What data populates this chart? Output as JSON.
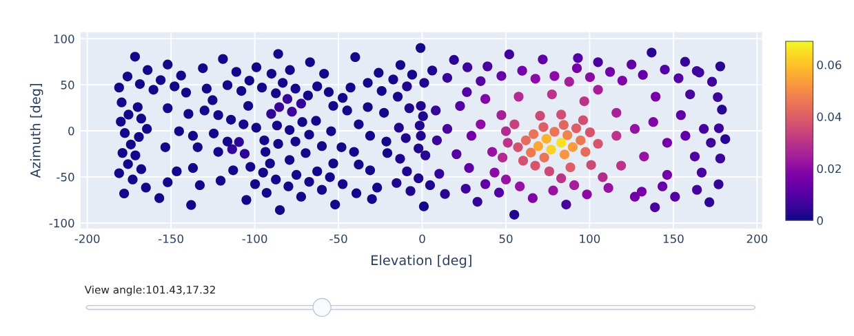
{
  "chart_data": {
    "type": "scatter",
    "xlabel": "Elevation [deg]",
    "ylabel": "Azimuth [deg]",
    "annotations": [
      "View angle:101.43,17.32"
    ],
    "xlim": [
      -204,
      203
    ],
    "ylim": [
      -106,
      107
    ],
    "xticks": [
      -200,
      -150,
      -100,
      -50,
      0,
      50,
      100,
      150,
      200
    ],
    "yticks": [
      -100,
      -50,
      0,
      50,
      100
    ],
    "clim": [
      0,
      0.069
    ],
    "cticks": [
      0,
      0.02,
      0.04,
      0.06
    ],
    "grid": true,
    "marker": "circle",
    "x": [
      -181,
      -180,
      -179,
      -181,
      -178,
      -176,
      -171.5,
      -164,
      -152,
      -157,
      -144,
      -138,
      -131,
      -119,
      -111,
      -99,
      -90,
      -86,
      -79,
      -67,
      -85,
      -52,
      -40,
      -26,
      -13,
      -6,
      -1,
      1,
      -30,
      -105,
      6,
      19,
      27,
      39,
      52,
      55,
      72,
      79,
      93,
      105,
      125,
      137,
      157,
      164,
      178,
      179,
      181,
      178,
      177,
      171.5,
      139,
      127,
      86,
      66,
      33,
      13.6,
      83,
      77,
      74.2,
      69.3,
      89.9,
      85,
      86.7,
      79,
      66.5,
      64.9,
      72.9,
      94.6,
      97.5,
      61.9,
      57.2,
      60.3,
      67.5,
      75.9,
      83,
      88.5,
      100.9,
      72.4,
      70.4,
      84.5,
      92,
      100.2,
      105,
      96.1,
      83,
      55.1,
      51.1,
      50,
      48,
      50,
      58.3,
      78.2,
      90.8,
      98.4,
      111.2,
      131.1,
      143.5,
      151,
      164.1,
      177.2,
      176.5,
      173.1,
      165.5,
      153.1,
      144.9,
      131.8,
      119.5,
      112.2,
      100.2,
      92.4,
      87.8,
      67.6,
      59.7,
      47.3,
      34.9,
      15,
      22.6,
      15,
      20.5,
      10.2,
      4.7,
      26,
      37.7,
      45.9,
      34.9,
      41.8,
      37.7,
      57.6,
      77.5,
      96.8,
      116,
      127,
      132.5,
      118.8,
      146.3,
      154.5,
      162.8,
      168.2,
      139.4,
      160,
      166.9,
      146.3,
      107.8,
      105,
      0.5,
      -0.8,
      1.9,
      8.1,
      8.8,
      29.4,
      28,
      26.7,
      47.3,
      43.2,
      116,
      138,
      157.2,
      172.4,
      -85.4,
      -77.8,
      -72.3,
      -80.5,
      -90.2,
      -109.4,
      -113.5,
      -106,
      -179.5,
      -175.4,
      -177.6,
      -174,
      -175.7,
      -172.9,
      -168.6,
      -169.9,
      -167.8,
      -169.2,
      -171.3,
      -167.8,
      -165,
      -160.5,
      -164.4,
      -156.2,
      -152,
      -153.4,
      -152,
      -147.9,
      -145.2,
      -146.6,
      -141,
      -139.6,
      -136.9,
      -134.1,
      -136.9,
      -132.8,
      -128.7,
      -130,
      -125.2,
      -121.8,
      -124.5,
      -121.8,
      -120.4,
      -116.3,
      -114.2,
      -116.3,
      -112.9,
      -108,
      -103.9,
      -106.7,
      -102.6,
      -99.8,
      -103.2,
      -99.1,
      -95.7,
      -94.3,
      -93.6,
      -95,
      -87.4,
      -87.4,
      -92.9,
      -86.7,
      -86,
      -90.9,
      -83.3,
      -79.2,
      -79.2,
      -79.9,
      -75.7,
      -75.7,
      -75.1,
      -72.3,
      -68.2,
      -71.6,
      -67.5,
      -69.6,
      -67.5,
      -62.7,
      -63.4,
      -59.9,
      -62.7,
      -59.9,
      -58.6,
      -55.8,
      -53.1,
      -54.4,
      -53.1,
      -55.1,
      -47.5,
      -44.8,
      -48.2,
      -47.5,
      -42.8,
      -39.3,
      -37.9,
      -40.7,
      -37.9,
      -32.5,
      -32.5,
      -31.1,
      -31.1,
      -26.9,
      -24.2,
      -22.8,
      -21.4,
      -20.8,
      -17.3,
      -14.6,
      -13.9,
      -13.2,
      -15.3,
      -9.1,
      -7.7,
      -9.8,
      -9.1,
      -7,
      -1.5,
      -2.2,
      -2.2,
      1.2,
      -0.8
    ],
    "values": [
      47,
      10,
      -24,
      -46,
      -68,
      59,
      80.5,
      66,
      72,
      -73,
      60,
      -80.5,
      68,
      78,
      64,
      69,
      62,
      83.5,
      66,
      74.5,
      -86,
      -80,
      80,
      63,
      71.5,
      61,
      90,
      -82,
      -74,
      -75,
      65.5,
      77,
      69,
      70,
      83,
      -91,
      77.5,
      59.5,
      79,
      74.5,
      72,
      85,
      75,
      65,
      70,
      23,
      -9,
      -30,
      -58,
      -77.5,
      -83,
      -71.5,
      -80,
      -73,
      -77,
      -68.5,
      -12.9,
      -20.4,
      -8.6,
      -16.6,
      -17.6,
      -25.6,
      -4.6,
      -1,
      -3.6,
      -23.6,
      -29,
      -10.3,
      -22.8,
      -10.3,
      -17.8,
      -32.4,
      -37.8,
      -44,
      -51.5,
      -39.6,
      -37,
      4.1,
      16.3,
      6.4,
      2.8,
      -1.6,
      -14,
      11.6,
      17.6,
      7.1,
      -12.9,
      -0.4,
      -29,
      -52.8,
      -60.3,
      -64.8,
      -59,
      -69,
      -62,
      -66,
      -60.3,
      -71.5,
      -64,
      2.8,
      36.6,
      53.3,
      63.3,
      57.1,
      66.5,
      60.8,
      54.5,
      64,
      58.3,
      68,
      53.3,
      56.6,
      65.3,
      59.6,
      54,
      57.5,
      27,
      2.1,
      -25.3,
      -46.6,
      -59,
      -62.8,
      -57.8,
      -67,
      7.1,
      -22.8,
      34.6,
      37.1,
      39.6,
      32.1,
      19.6,
      2.1,
      -27.9,
      -37.8,
      -12.9,
      17.1,
      -27.9,
      2.1,
      37.1,
      39.6,
      -45.3,
      -47.8,
      -50.3,
      44.6,
      15.9,
      -5.4,
      -26.6,
      22.1,
      -10.3,
      -5.4,
      -40.3,
      42.1,
      17.1,
      -45.3,
      -5.4,
      9.6,
      -5.4,
      -12.9,
      25.8,
      20.8,
      29.6,
      34.6,
      18.4,
      -12.1,
      -19.9,
      -24.9,
      30.9,
      17.6,
      -2.4,
      -14.8,
      -36.1,
      -52.8,
      50.8,
      25.8,
      13.3,
      -6.6,
      -26.6,
      -41.6,
      -61.6,
      44.6,
      2.1,
      55.1,
      24.6,
      -17.8,
      -55.8,
      48.3,
      -0.4,
      -44,
      41.6,
      18.4,
      -5.4,
      -17.8,
      -40.3,
      -59,
      45.8,
      22.1,
      33.3,
      17.1,
      -2.8,
      -22.8,
      -54.1,
      49.6,
      12.1,
      -11.6,
      -42.8,
      43.3,
      27.1,
      7.1,
      -39.1,
      -57.8,
      54.5,
      3.4,
      47,
      -10.3,
      -22.8,
      -45.3,
      40.8,
      -52.8,
      -67.3,
      5.8,
      -14.1,
      -35.4,
      52.1,
      0.9,
      -31.6,
      -60.3,
      45.8,
      -11.6,
      -47.8,
      -71.5,
      38.4,
      9.6,
      -4.1,
      -24.1,
      -55.3,
      48.3,
      10.9,
      -16.6,
      -44,
      -64,
      62,
      42.1,
      27.1,
      -0.4,
      -35.4,
      -50.3,
      35.8,
      22.1,
      -17.8,
      -57.8,
      47,
      -67.8,
      7.1,
      -22.8,
      -36.6,
      52.1,
      25.8,
      -5.4,
      -42.8,
      -61.6,
      43.3,
      19.6,
      -11.6,
      -24.1,
      55.8,
      37.1,
      3.4,
      -30.3,
      -56.6,
      48.3,
      24.6,
      -7.9,
      -44,
      -65.3,
      5.8,
      -19.1,
      -51.5,
      52.1,
      27.1
    ],
    "cvalues": [
      0.001,
      0.001,
      0.001,
      0.001,
      0.001,
      0.001,
      0.001,
      0.001,
      0.001,
      0.001,
      0.001,
      0.001,
      0.001,
      0.001,
      0.001,
      0.001,
      0.001,
      0.001,
      0.001,
      0.001,
      0.001,
      0.001,
      0.001,
      0.001,
      0.001,
      0.001,
      0.001,
      0.001,
      0.001,
      0.001,
      0.002,
      0.003,
      0.006,
      0.008,
      0.006,
      0.002,
      0.012,
      0.02,
      0.01,
      0.008,
      0.012,
      0.003,
      0.005,
      0.007,
      0.003,
      0.003,
      0.003,
      0.006,
      0.005,
      0.004,
      0.008,
      0.015,
      0.008,
      0.018,
      0.005,
      0.003,
      0.065,
      0.063,
      0.057,
      0.055,
      0.053,
      0.052,
      0.048,
      0.045,
      0.045,
      0.046,
      0.045,
      0.046,
      0.043,
      0.043,
      0.037,
      0.037,
      0.038,
      0.035,
      0.03,
      0.04,
      0.035,
      0.04,
      0.035,
      0.042,
      0.04,
      0.038,
      0.038,
      0.036,
      0.036,
      0.033,
      0.03,
      0.028,
      0.028,
      0.022,
      0.022,
      0.022,
      0.025,
      0.02,
      0.022,
      0.016,
      0.014,
      0.01,
      0.008,
      0.006,
      0.006,
      0.006,
      0.007,
      0.01,
      0.01,
      0.013,
      0.018,
      0.015,
      0.02,
      0.016,
      0.025,
      0.02,
      0.016,
      0.013,
      0.01,
      0.005,
      0.01,
      0.008,
      0.01,
      0.005,
      0.002,
      0.006,
      0.012,
      0.01,
      0.02,
      0.022,
      0.018,
      0.028,
      0.03,
      0.03,
      0.026,
      0.022,
      0.022,
      0.03,
      0.016,
      0.012,
      0.01,
      0.008,
      0.016,
      0.008,
      0.008,
      0.016,
      0.028,
      0.025,
      0.002,
      0.002,
      0.003,
      0.005,
      0.006,
      0.015,
      0.012,
      0.01,
      0.025,
      0.02,
      0.03,
      0.018,
      0.012,
      0.006,
      0.006,
      0.006,
      0.005,
      0.005,
      0.004,
      0.004,
      0.005,
      0.004,
      0.001,
      0.001,
      0.001,
      0.001,
      0.001,
      0.001,
      0.001,
      0.001,
      0.001,
      0.001,
      0.001,
      0.001,
      0.001,
      0.001,
      0.001,
      0.001,
      0.001,
      0.001,
      0.001,
      0.001,
      0.001,
      0.001,
      0.001,
      0.001,
      0.001,
      0.001,
      0.001,
      0.001,
      0.001,
      0.001,
      0.001,
      0.001,
      0.001,
      0.001,
      0.001,
      0.001,
      0.001,
      0.001,
      0.001,
      0.001,
      0.001,
      0.001,
      0.001,
      0.001,
      0.001,
      0.001,
      0.001,
      0.001,
      0.001,
      0.001,
      0.001,
      0.001,
      0.001,
      0.001,
      0.001,
      0.001,
      0.001,
      0.001,
      0.001,
      0.001,
      0.001,
      0.001,
      0.001,
      0.001,
      0.001,
      0.001,
      0.001,
      0.001,
      0.001,
      0.001,
      0.001,
      0.001,
      0.001,
      0.001,
      0.001,
      0.001,
      0.001,
      0.001,
      0.001,
      0.001,
      0.001,
      0.001,
      0.001,
      0.001,
      0.001,
      0.001,
      0.001,
      0.001,
      0.001,
      0.001,
      0.001,
      0.001,
      0.001,
      0.001,
      0.001,
      0.001,
      0.001,
      0.001,
      0.001,
      0.001,
      0.002,
      0.002,
      0.002,
      0.002,
      0.002,
      0.002,
      0.002,
      0.002,
      0.002,
      0.002,
      0.002,
      0.002,
      0.002
    ]
  }
}
